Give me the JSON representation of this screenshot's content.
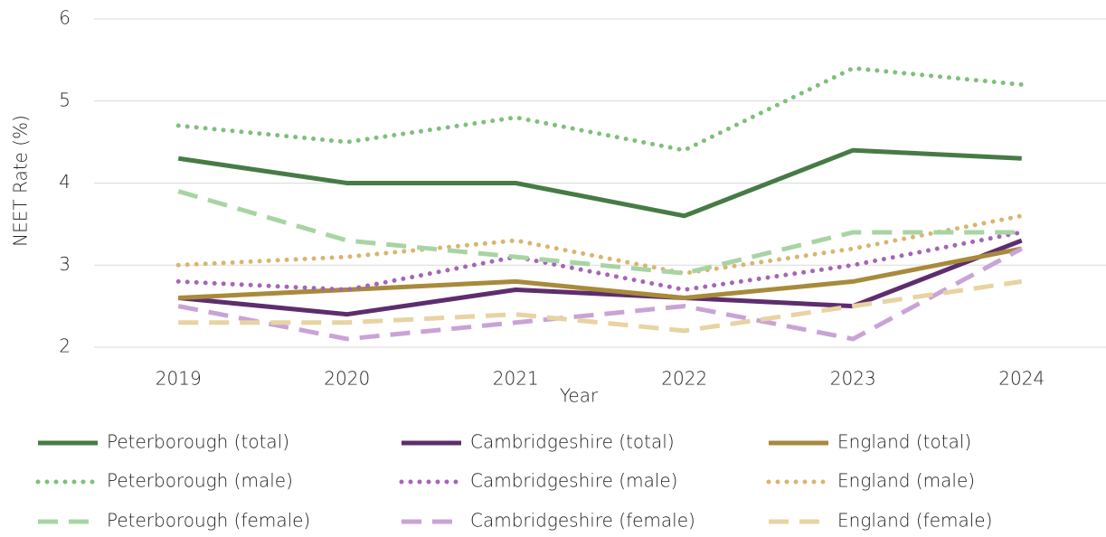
{
  "chart_data": {
    "type": "line",
    "x_label": "Year",
    "y_label": "NEET Rate (%)",
    "categories": [
      "2019",
      "2020",
      "2021",
      "2022",
      "2023",
      "2024"
    ],
    "ylim": [
      2,
      6
    ],
    "yticks": [
      2,
      3,
      4,
      5,
      6
    ],
    "grid": true,
    "legend": "bottom",
    "series": [
      {
        "name": "Peterborough (total)",
        "color": "#467b45",
        "style": "solid",
        "values": [
          4.3,
          4.0,
          4.0,
          3.6,
          4.4,
          4.3
        ]
      },
      {
        "name": "Cambridgeshire (total)",
        "color": "#5e2d6e",
        "style": "solid",
        "values": [
          2.6,
          2.4,
          2.7,
          2.6,
          2.5,
          3.3
        ]
      },
      {
        "name": "England (total)",
        "color": "#a88a3b",
        "style": "solid",
        "values": [
          2.6,
          2.7,
          2.8,
          2.6,
          2.8,
          3.2
        ]
      },
      {
        "name": "Peterborough (male)",
        "color": "#7fbf7b",
        "style": "dotted",
        "values": [
          4.7,
          4.5,
          4.8,
          4.4,
          5.4,
          5.2
        ]
      },
      {
        "name": "Cambridgeshire (male)",
        "color": "#a565b8",
        "style": "dotted",
        "values": [
          2.8,
          2.7,
          3.1,
          2.7,
          3.0,
          3.4
        ]
      },
      {
        "name": "England (male)",
        "color": "#d9b56d",
        "style": "dotted",
        "values": [
          3.0,
          3.1,
          3.3,
          2.9,
          3.2,
          3.6
        ]
      },
      {
        "name": "Peterborough (female)",
        "color": "#a8d4a4",
        "style": "dashed",
        "values": [
          3.9,
          3.3,
          3.1,
          2.9,
          3.4,
          3.4
        ]
      },
      {
        "name": "Cambridgeshire (female)",
        "color": "#c9a3d6",
        "style": "dashed",
        "values": [
          2.5,
          2.1,
          2.3,
          2.5,
          2.1,
          3.2
        ]
      },
      {
        "name": "England (female)",
        "color": "#e8d3a1",
        "style": "dashed",
        "values": [
          2.3,
          2.3,
          2.4,
          2.2,
          2.5,
          2.8
        ]
      }
    ]
  }
}
